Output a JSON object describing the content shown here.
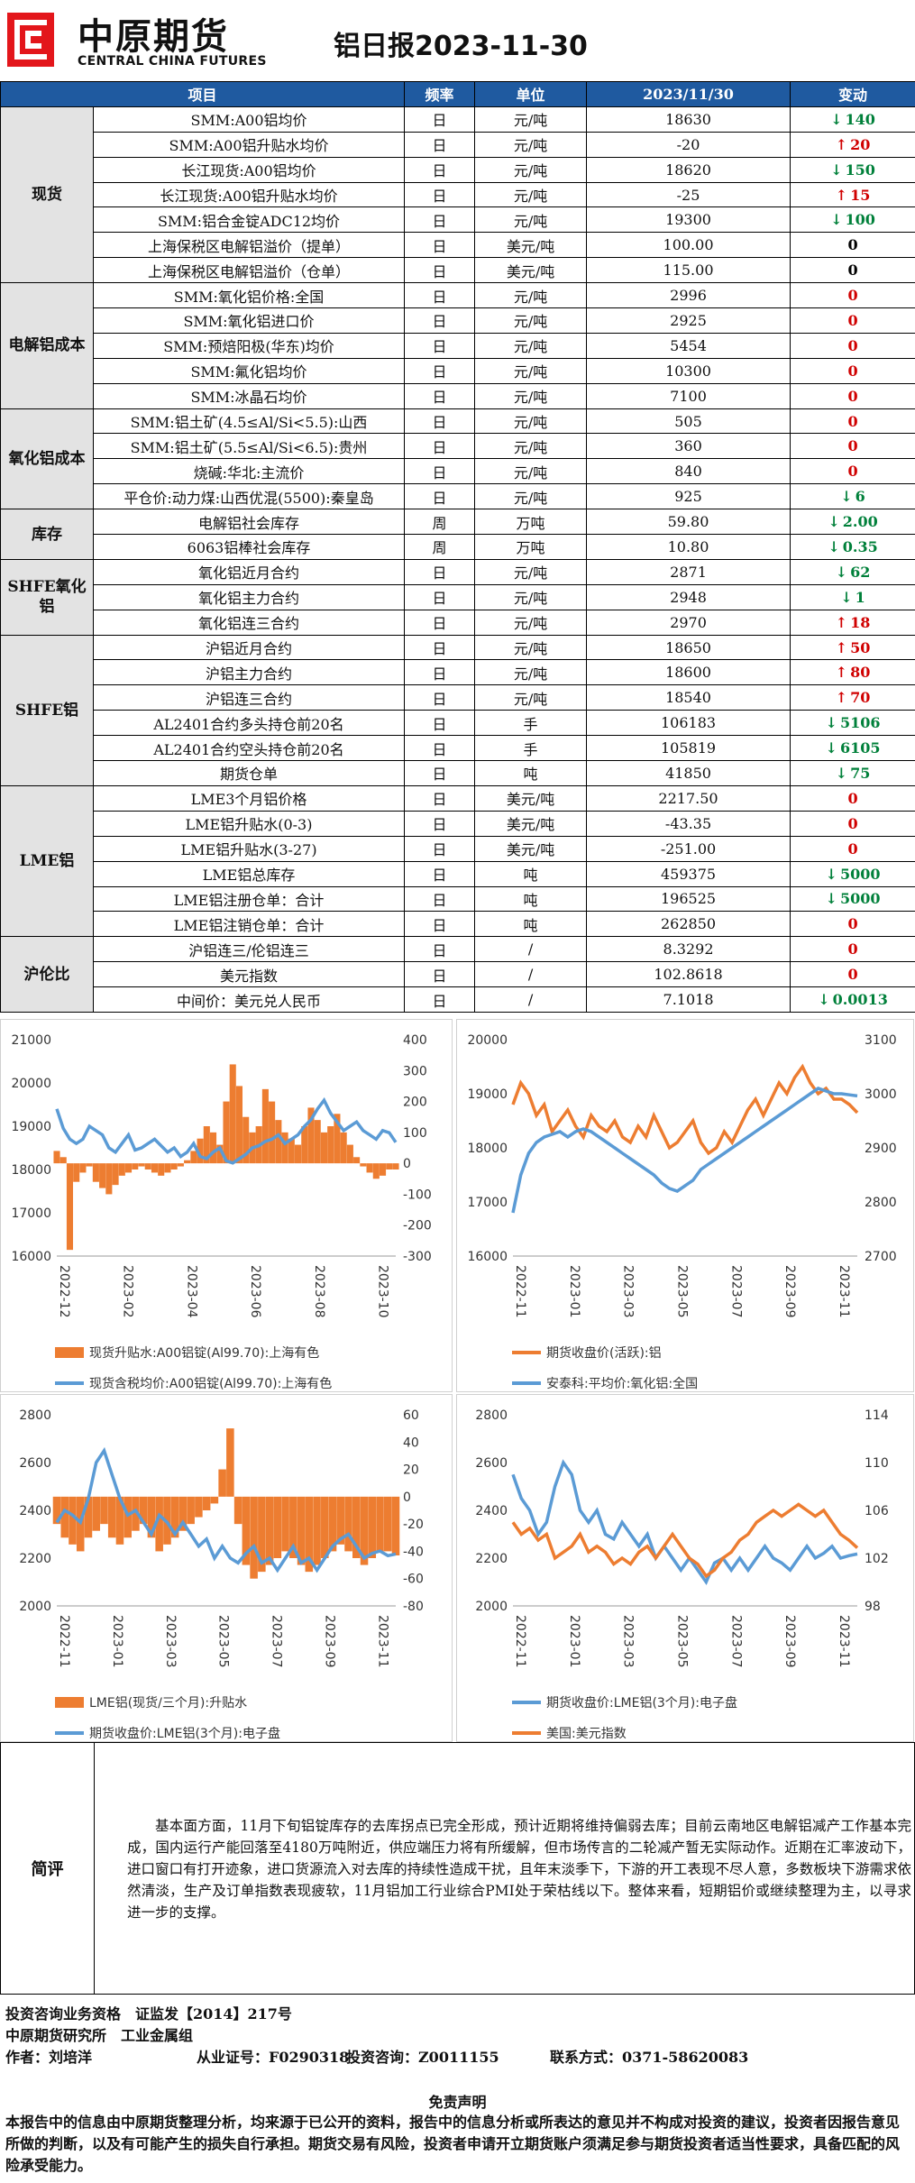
{
  "brand": {
    "name_cn": "中原期货",
    "name_en": "CENTRAL CHINA FUTURES",
    "accent": "#e3161b"
  },
  "title": "铝日报2023-11-30",
  "table": {
    "headers": [
      "项目",
      "频率",
      "单位",
      "2023/11/30",
      "变动"
    ],
    "groups": [
      {
        "category": "现货",
        "rows": [
          {
            "item": "SMM:A00铝均价",
            "freq": "日",
            "unit": "元/吨",
            "value": "18630",
            "change": "140",
            "dir": "down"
          },
          {
            "item": "SMM:A00铝升贴水均价",
            "freq": "日",
            "unit": "元/吨",
            "value": "-20",
            "change": "20",
            "dir": "up"
          },
          {
            "item": "长江现货:A00铝均价",
            "freq": "日",
            "unit": "元/吨",
            "value": "18620",
            "change": "150",
            "dir": "down"
          },
          {
            "item": "长江现货:A00铝升贴水均价",
            "freq": "日",
            "unit": "元/吨",
            "value": "-25",
            "change": "15",
            "dir": "up"
          },
          {
            "item": "SMM:铝合金锭ADC12均价",
            "freq": "日",
            "unit": "元/吨",
            "value": "19300",
            "change": "100",
            "dir": "down"
          },
          {
            "item": "上海保税区电解铝溢价（提单）",
            "freq": "日",
            "unit": "美元/吨",
            "value": "100.00",
            "change": "0",
            "dir": "plain"
          },
          {
            "item": "上海保税区电解铝溢价（仓单）",
            "freq": "日",
            "unit": "美元/吨",
            "value": "115.00",
            "change": "0",
            "dir": "plain"
          }
        ]
      },
      {
        "category": "电解铝成本",
        "rows": [
          {
            "item": "SMM:氧化铝价格:全国",
            "freq": "日",
            "unit": "元/吨",
            "value": "2996",
            "change": "0",
            "dir": "zero"
          },
          {
            "item": "SMM:氧化铝进口价",
            "freq": "日",
            "unit": "元/吨",
            "value": "2925",
            "change": "0",
            "dir": "zero"
          },
          {
            "item": "SMM:预焙阳极(华东)均价",
            "freq": "日",
            "unit": "元/吨",
            "value": "5454",
            "change": "0",
            "dir": "zero"
          },
          {
            "item": "SMM:氟化铝均价",
            "freq": "日",
            "unit": "元/吨",
            "value": "10300",
            "change": "0",
            "dir": "zero"
          },
          {
            "item": "SMM:冰晶石均价",
            "freq": "日",
            "unit": "元/吨",
            "value": "7100",
            "change": "0",
            "dir": "zero"
          }
        ]
      },
      {
        "category": "氧化铝成本",
        "rows": [
          {
            "item": "SMM:铝土矿(4.5≤Al/Si<5.5):山西",
            "freq": "日",
            "unit": "元/吨",
            "value": "505",
            "change": "0",
            "dir": "zero"
          },
          {
            "item": "SMM:铝土矿(5.5≤Al/Si<6.5):贵州",
            "freq": "日",
            "unit": "元/吨",
            "value": "360",
            "change": "0",
            "dir": "zero"
          },
          {
            "item": "烧碱:华北:主流价",
            "freq": "日",
            "unit": "元/吨",
            "value": "840",
            "change": "0",
            "dir": "zero"
          },
          {
            "item": "平仓价:动力煤:山西优混(5500):秦皇岛",
            "freq": "日",
            "unit": "元/吨",
            "value": "925",
            "change": "6",
            "dir": "down"
          }
        ]
      },
      {
        "category": "库存",
        "rows": [
          {
            "item": "电解铝社会库存",
            "freq": "周",
            "unit": "万吨",
            "value": "59.80",
            "change": "2.00",
            "dir": "down"
          },
          {
            "item": "6063铝棒社会库存",
            "freq": "周",
            "unit": "万吨",
            "value": "10.80",
            "change": "0.35",
            "dir": "down"
          }
        ]
      },
      {
        "category": "SHFE氧化铝",
        "rows": [
          {
            "item": "氧化铝近月合约",
            "freq": "日",
            "unit": "元/吨",
            "value": "2871",
            "change": "62",
            "dir": "down"
          },
          {
            "item": "氧化铝主力合约",
            "freq": "日",
            "unit": "元/吨",
            "value": "2948",
            "change": "1",
            "dir": "down"
          },
          {
            "item": "氧化铝连三合约",
            "freq": "日",
            "unit": "元/吨",
            "value": "2970",
            "change": "18",
            "dir": "up"
          }
        ]
      },
      {
        "category": "SHFE铝",
        "rows": [
          {
            "item": "沪铝近月合约",
            "freq": "日",
            "unit": "元/吨",
            "value": "18650",
            "change": "50",
            "dir": "up"
          },
          {
            "item": "沪铝主力合约",
            "freq": "日",
            "unit": "元/吨",
            "value": "18600",
            "change": "80",
            "dir": "up"
          },
          {
            "item": "沪铝连三合约",
            "freq": "日",
            "unit": "元/吨",
            "value": "18540",
            "change": "70",
            "dir": "up"
          },
          {
            "item": "AL2401合约多头持仓前20名",
            "freq": "日",
            "unit": "手",
            "value": "106183",
            "change": "5106",
            "dir": "down"
          },
          {
            "item": "AL2401合约空头持仓前20名",
            "freq": "日",
            "unit": "手",
            "value": "105819",
            "change": "6105",
            "dir": "down"
          },
          {
            "item": "期货仓单",
            "freq": "日",
            "unit": "吨",
            "value": "41850",
            "change": "75",
            "dir": "down"
          }
        ]
      },
      {
        "category": "LME铝",
        "rows": [
          {
            "item": "LME3个月铝价格",
            "freq": "日",
            "unit": "美元/吨",
            "value": "2217.50",
            "change": "0",
            "dir": "zero"
          },
          {
            "item": "LME铝升贴水(0-3)",
            "freq": "日",
            "unit": "美元/吨",
            "value": "-43.35",
            "change": "0",
            "dir": "zero"
          },
          {
            "item": "LME铝升贴水(3-27)",
            "freq": "日",
            "unit": "美元/吨",
            "value": "-251.00",
            "change": "0",
            "dir": "zero"
          },
          {
            "item": "LME铝总库存",
            "freq": "日",
            "unit": "吨",
            "value": "459375",
            "change": "5000",
            "dir": "down"
          },
          {
            "item": "LME铝注册仓单：合计",
            "freq": "日",
            "unit": "吨",
            "value": "196525",
            "change": "5000",
            "dir": "down"
          },
          {
            "item": "LME铝注销仓单：合计",
            "freq": "日",
            "unit": "吨",
            "value": "262850",
            "change": "0",
            "dir": "zero"
          }
        ]
      },
      {
        "category": "沪伦比",
        "rows": [
          {
            "item": "沪铝连三/伦铝连三",
            "freq": "日",
            "unit": "/",
            "value": "8.3292",
            "change": "0",
            "dir": "zero"
          },
          {
            "item": "美元指数",
            "freq": "日",
            "unit": "/",
            "value": "102.8618",
            "change": "0",
            "dir": "zero"
          },
          {
            "item": "中间价：美元兑人民币",
            "freq": "日",
            "unit": "/",
            "value": "7.1018",
            "change": "0.0013",
            "dir": "down"
          }
        ]
      }
    ]
  },
  "chart_data": [
    {
      "type": "line",
      "x_ticks": [
        "2022-12",
        "2023-02",
        "2023-04",
        "2023-06",
        "2023-08",
        "2023-10"
      ],
      "yleft_ticks": [
        "21000",
        "20000",
        "19000",
        "18000",
        "17000",
        "16000"
      ],
      "yright_ticks": [
        "400",
        "300",
        "200",
        "100",
        "0",
        "-100",
        "-200",
        "-300"
      ],
      "ylim_left": [
        16000,
        21000
      ],
      "ylim_right": [
        -300,
        400
      ],
      "series": [
        {
          "name": "现货升贴水:A00铝锭(Al99.70):上海有色",
          "axis": "right",
          "color": "#ed7d31",
          "style": "bar",
          "values": [
            40,
            20,
            -280,
            -60,
            -30,
            -10,
            -60,
            -80,
            -100,
            -70,
            -40,
            -30,
            -20,
            -10,
            -20,
            -30,
            -40,
            -30,
            -20,
            -10,
            10,
            40,
            80,
            120,
            100,
            60,
            200,
            320,
            250,
            150,
            100,
            120,
            240,
            200,
            140,
            100,
            80,
            60,
            120,
            180,
            140,
            100,
            120,
            160,
            100,
            60,
            20,
            -10,
            -30,
            -50,
            -40,
            -20,
            -20
          ]
        },
        {
          "name": "现货含税均价:A00铝锭(Al99.70):上海有色",
          "axis": "left",
          "color": "#5b9bd5",
          "style": "line",
          "values": [
            19400,
            18950,
            18700,
            18600,
            18700,
            19000,
            18900,
            18800,
            18500,
            18400,
            18600,
            18800,
            18450,
            18500,
            18600,
            18700,
            18550,
            18400,
            18500,
            18300,
            18400,
            18600,
            18300,
            18250,
            18400,
            18500,
            18200,
            18150,
            18250,
            18350,
            18500,
            18550,
            18650,
            18700,
            18800,
            18600,
            18700,
            18800,
            19000,
            19150,
            19400,
            19600,
            19300,
            19100,
            18900,
            19000,
            19100,
            18900,
            18800,
            18700,
            18900,
            18850,
            18630
          ]
        }
      ]
    },
    {
      "type": "line",
      "x_ticks": [
        "2022-11",
        "2023-01",
        "2023-03",
        "2023-05",
        "2023-07",
        "2023-09",
        "2023-11"
      ],
      "yleft_ticks": [
        "20000",
        "19000",
        "18000",
        "17000",
        "16000"
      ],
      "yright_ticks": [
        "3100",
        "3000",
        "2900",
        "2800",
        "2700"
      ],
      "ylim_left": [
        16000,
        20000
      ],
      "ylim_right": [
        2700,
        3100
      ],
      "series": [
        {
          "name": "期货收盘价(活跃):铝",
          "axis": "left",
          "color": "#ed7d31",
          "values": [
            18800,
            19200,
            19000,
            18600,
            18800,
            18300,
            18500,
            18700,
            18400,
            18200,
            18600,
            18400,
            18300,
            18500,
            18200,
            18100,
            18400,
            18200,
            18600,
            18300,
            18000,
            18100,
            18300,
            18500,
            18100,
            17900,
            18000,
            18300,
            18100,
            18400,
            18700,
            18900,
            18600,
            18900,
            19200,
            19000,
            19300,
            19500,
            19200,
            19000,
            19100,
            18900,
            18900,
            18800,
            18650
          ]
        },
        {
          "name": "安泰科:平均价:氧化铝:全国",
          "axis": "right",
          "color": "#5b9bd5",
          "values": [
            2780,
            2850,
            2890,
            2910,
            2920,
            2925,
            2930,
            2920,
            2930,
            2935,
            2930,
            2920,
            2910,
            2900,
            2890,
            2880,
            2870,
            2860,
            2850,
            2835,
            2825,
            2820,
            2830,
            2840,
            2860,
            2870,
            2880,
            2890,
            2900,
            2910,
            2920,
            2930,
            2940,
            2950,
            2960,
            2970,
            2980,
            2990,
            3000,
            3010,
            3005,
            3000,
            3000,
            2998,
            2996
          ]
        }
      ]
    },
    {
      "type": "line",
      "x_ticks": [
        "2022-11",
        "2023-01",
        "2023-03",
        "2023-05",
        "2023-07",
        "2023-09",
        "2023-11"
      ],
      "yleft_ticks": [
        "2800",
        "2600",
        "2400",
        "2200",
        "2000"
      ],
      "yright_ticks": [
        "60",
        "40",
        "20",
        "0",
        "-20",
        "-40",
        "-60",
        "-80"
      ],
      "ylim_left": [
        2000,
        2800
      ],
      "ylim_right": [
        -80,
        60
      ],
      "series": [
        {
          "name": "LME铝(现货/三个月):升贴水",
          "axis": "right",
          "color": "#ed7d31",
          "style": "bar",
          "values": [
            -20,
            -30,
            -35,
            -40,
            -30,
            -25,
            -20,
            -30,
            -35,
            -30,
            -25,
            -20,
            -30,
            -40,
            -35,
            -30,
            -25,
            -20,
            -15,
            -10,
            -5,
            20,
            50,
            -20,
            -50,
            -60,
            -55,
            -50,
            -45,
            -40,
            -45,
            -50,
            -55,
            -50,
            -45,
            -40,
            -35,
            -40,
            -45,
            -50,
            -45,
            -40,
            -40,
            -43
          ]
        },
        {
          "name": "期货收盘价:LME铝(3个月):电子盘",
          "axis": "left",
          "color": "#5b9bd5",
          "style": "line",
          "values": [
            2350,
            2400,
            2380,
            2350,
            2450,
            2600,
            2650,
            2550,
            2450,
            2380,
            2400,
            2350,
            2300,
            2380,
            2350,
            2300,
            2350,
            2300,
            2250,
            2280,
            2200,
            2250,
            2200,
            2180,
            2220,
            2250,
            2180,
            2200,
            2150,
            2200,
            2250,
            2180,
            2200,
            2150,
            2200,
            2250,
            2280,
            2300,
            2250,
            2200,
            2220,
            2230,
            2210,
            2217.5
          ]
        }
      ]
    },
    {
      "type": "line",
      "x_ticks": [
        "2022-11",
        "2023-01",
        "2023-03",
        "2023-05",
        "2023-07",
        "2023-09",
        "2023-11"
      ],
      "yleft_ticks": [
        "2800",
        "2600",
        "2400",
        "2200",
        "2000"
      ],
      "yright_ticks": [
        "114",
        "110",
        "106",
        "102",
        "98"
      ],
      "ylim_left": [
        2000,
        2800
      ],
      "ylim_right": [
        98,
        114
      ],
      "series": [
        {
          "name": "期货收盘价:LME铝(3个月):电子盘",
          "axis": "left",
          "color": "#5b9bd5",
          "values": [
            2550,
            2450,
            2400,
            2300,
            2350,
            2500,
            2600,
            2550,
            2400,
            2350,
            2400,
            2300,
            2280,
            2350,
            2300,
            2250,
            2300,
            2200,
            2250,
            2200,
            2150,
            2200,
            2150,
            2100,
            2180,
            2200,
            2150,
            2200,
            2150,
            2200,
            2250,
            2200,
            2180,
            2150,
            2200,
            2250,
            2200,
            2220,
            2250,
            2200,
            2210,
            2217.5
          ]
        },
        {
          "name": "美国:美元指数",
          "axis": "right",
          "color": "#ed7d31",
          "values": [
            105,
            104,
            104.5,
            103.5,
            104,
            102,
            102.5,
            103,
            104,
            102.5,
            103,
            102.5,
            101.5,
            102,
            101.5,
            102.5,
            103,
            102,
            103,
            104,
            103,
            102,
            101.5,
            100.5,
            101,
            102,
            102.5,
            103.5,
            104,
            105,
            105.5,
            106,
            105.5,
            106,
            106.5,
            106,
            105.5,
            106,
            105,
            104,
            103.5,
            102.86
          ]
        }
      ]
    }
  ],
  "comment": {
    "label": "简评",
    "text": "基本面方面，11月下旬铝锭库存的去库拐点已完全形成，预计近期将维持偏弱去库；目前云南地区电解铝减产工作基本完成，国内运行产能回落至4180万吨附近，供应端压力将有所缓解，但市场传言的二轮减产暂无实际动作。近期在汇率波动下，进口窗口有打开迹象，进口货源流入对去库的持续性造成干扰，且年末淡季下，下游的开工表现不尽人意，多数板块下游需求依然清淡，生产及订单指数表现疲软，11月铝加工行业综合PMI处于荣枯线以下。整体来看，短期铝价或继续整理为主，以寻求进一步的支撑。"
  },
  "footer": {
    "line1": "投资咨询业务资格　证监发【2014】217号",
    "line2": "中原期货研究所　工业金属组",
    "author_label": "作者：刘培洋",
    "license_label": "从业证号：F0290318",
    "consult_label": "投资咨询：Z0011155",
    "contact_label": "联系方式：0371-58620083",
    "disclaimer_title": "免责声明",
    "disclaimer": "本报告中的信息由中原期货整理分析，均来源于已公开的资料，报告中的信息分析或所表达的意见并不构成对投资的建议，投资者因报告意见所做的判断，以及有可能产生的损失自行承担。期货交易有风险，投资者申请开立期货账户须满足参与期货投资者适当性要求，具备匹配的风险承受能力。"
  }
}
